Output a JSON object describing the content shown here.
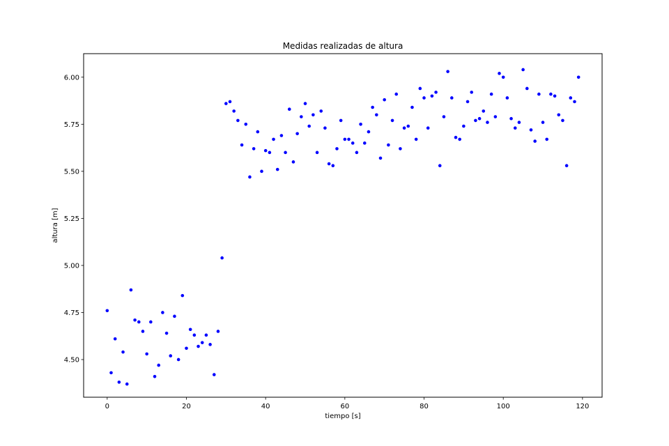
{
  "chart_data": {
    "type": "scatter",
    "title": "Medidas realizadas de altura",
    "xlabel": "tiempo [s]",
    "ylabel": "altura [m]",
    "xlim": [
      -5.95,
      124.95
    ],
    "ylim": [
      4.3,
      6.125
    ],
    "xticks": [
      0,
      20,
      40,
      60,
      80,
      100,
      120
    ],
    "yticks": [
      4.5,
      4.75,
      5.0,
      5.25,
      5.5,
      5.75,
      6.0
    ],
    "xtick_labels": [
      "0",
      "20",
      "40",
      "60",
      "80",
      "100",
      "120"
    ],
    "ytick_labels": [
      "4.50",
      "4.75",
      "5.00",
      "5.25",
      "5.50",
      "5.75",
      "6.00"
    ],
    "grid": false,
    "marker_color": "#0000ff",
    "x": [
      0,
      1,
      2,
      3,
      4,
      5,
      6,
      7,
      8,
      9,
      10,
      11,
      12,
      13,
      14,
      15,
      16,
      17,
      18,
      19,
      20,
      21,
      22,
      23,
      24,
      25,
      26,
      27,
      28,
      29,
      30,
      31,
      32,
      33,
      34,
      35,
      36,
      37,
      38,
      39,
      40,
      41,
      42,
      43,
      44,
      45,
      46,
      47,
      48,
      49,
      50,
      51,
      52,
      53,
      54,
      55,
      56,
      57,
      58,
      59,
      60,
      61,
      62,
      63,
      64,
      65,
      66,
      67,
      68,
      69,
      70,
      71,
      72,
      73,
      74,
      75,
      76,
      77,
      78,
      79,
      80,
      81,
      82,
      83,
      84,
      85,
      86,
      87,
      88,
      89,
      90,
      91,
      92,
      93,
      94,
      95,
      96,
      97,
      98,
      99,
      100,
      101,
      102,
      103,
      104,
      105,
      106,
      107,
      108,
      109,
      110,
      111,
      112,
      113,
      114,
      115,
      116,
      117,
      118,
      119
    ],
    "y": [
      4.76,
      4.43,
      4.61,
      4.38,
      4.54,
      4.37,
      4.87,
      4.71,
      4.7,
      4.65,
      4.53,
      4.7,
      4.41,
      4.47,
      4.75,
      4.64,
      4.52,
      4.73,
      4.5,
      4.84,
      4.56,
      4.66,
      4.63,
      4.57,
      4.59,
      4.63,
      4.58,
      4.42,
      4.65,
      5.04,
      5.86,
      5.87,
      5.82,
      5.77,
      5.64,
      5.75,
      5.47,
      5.62,
      5.71,
      5.5,
      5.61,
      5.6,
      5.67,
      5.51,
      5.69,
      5.6,
      5.83,
      5.55,
      5.7,
      5.79,
      5.86,
      5.74,
      5.8,
      5.6,
      5.82,
      5.73,
      5.54,
      5.53,
      5.62,
      5.77,
      5.67,
      5.67,
      5.65,
      5.6,
      5.75,
      5.65,
      5.71,
      5.84,
      5.8,
      5.57,
      5.88,
      5.64,
      5.77,
      5.91,
      5.62,
      5.73,
      5.74,
      5.84,
      5.67,
      5.94,
      5.89,
      5.73,
      5.9,
      5.92,
      5.53,
      5.79,
      6.03,
      5.89,
      5.68,
      5.67,
      5.74,
      5.87,
      5.92,
      5.77,
      5.78,
      5.82,
      5.76,
      5.91,
      5.79,
      6.02,
      6.0,
      5.89,
      5.78,
      5.73,
      5.76,
      6.04,
      5.94,
      5.72,
      5.66,
      5.91,
      5.76,
      5.67,
      5.91,
      5.9,
      5.8,
      5.77,
      5.53,
      5.89,
      5.87,
      6.0
    ]
  }
}
